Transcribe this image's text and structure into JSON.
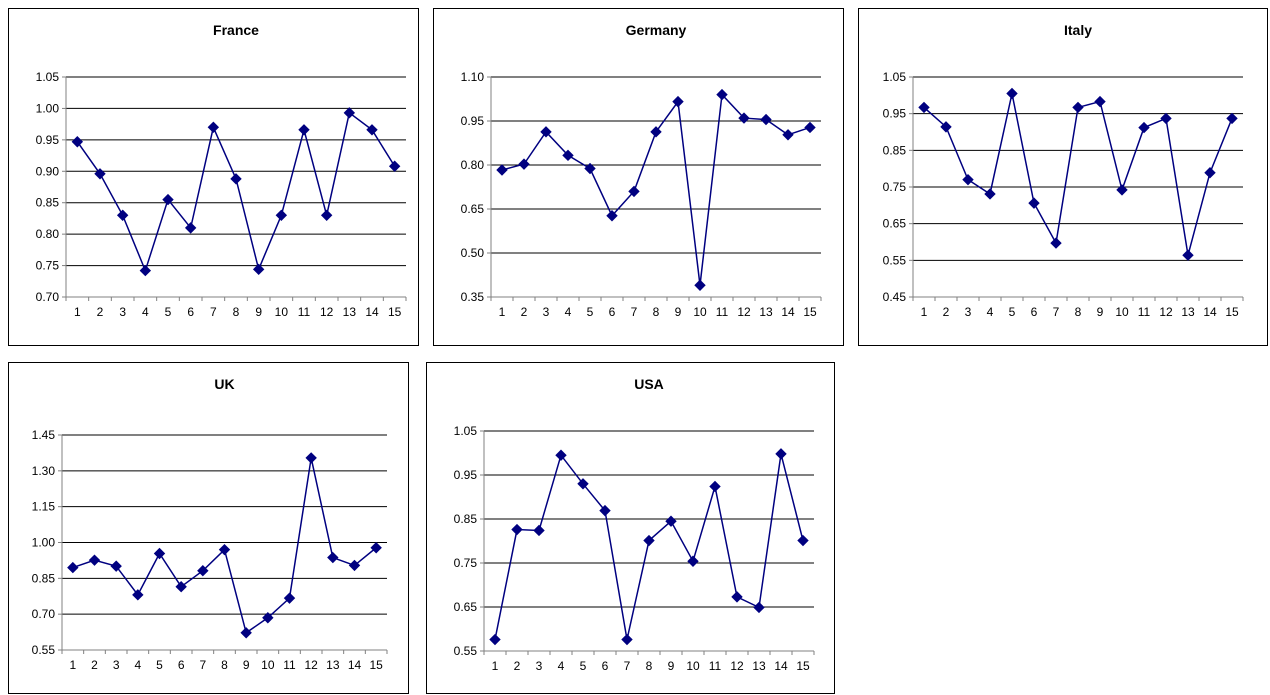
{
  "colors": {
    "series": "#000080",
    "grid": "#000000",
    "axis": "#808080"
  },
  "chart_data": [
    {
      "type": "line",
      "title": "France",
      "x": [
        1,
        2,
        3,
        4,
        5,
        6,
        7,
        8,
        9,
        10,
        11,
        12,
        13,
        14,
        15
      ],
      "values": [
        0.947,
        0.896,
        0.83,
        0.742,
        0.855,
        0.81,
        0.97,
        0.888,
        0.744,
        0.83,
        0.966,
        0.83,
        0.993,
        0.966,
        0.908
      ],
      "ylim": [
        0.7,
        1.05
      ],
      "yticks": [
        "0.70",
        "0.75",
        "0.80",
        "0.85",
        "0.90",
        "0.95",
        "1.00",
        "1.05"
      ],
      "grid": true,
      "marker": "diamond"
    },
    {
      "type": "line",
      "title": "Germany",
      "x": [
        1,
        2,
        3,
        4,
        5,
        6,
        7,
        8,
        9,
        10,
        11,
        12,
        13,
        14,
        15
      ],
      "values": [
        0.783,
        0.803,
        0.913,
        0.833,
        0.788,
        0.627,
        0.71,
        0.913,
        1.016,
        0.39,
        1.04,
        0.96,
        0.955,
        0.903,
        0.928
      ],
      "ylim": [
        0.35,
        1.1
      ],
      "yticks": [
        "0.35",
        "0.50",
        "0.65",
        "0.80",
        "0.95",
        "1.10"
      ],
      "grid": true,
      "marker": "diamond"
    },
    {
      "type": "line",
      "title": "Italy",
      "x": [
        1,
        2,
        3,
        4,
        5,
        6,
        7,
        8,
        9,
        10,
        11,
        12,
        13,
        14,
        15
      ],
      "values": [
        0.967,
        0.914,
        0.77,
        0.731,
        1.005,
        0.706,
        0.597,
        0.967,
        0.983,
        0.742,
        0.912,
        0.937,
        0.564,
        0.789,
        0.937
      ],
      "ylim": [
        0.45,
        1.05
      ],
      "yticks": [
        "0.45",
        "0.55",
        "0.65",
        "0.75",
        "0.85",
        "0.95",
        "1.05"
      ],
      "grid": true,
      "marker": "diamond"
    },
    {
      "type": "line",
      "title": "UK",
      "x": [
        1,
        2,
        3,
        4,
        5,
        6,
        7,
        8,
        9,
        10,
        11,
        12,
        13,
        14,
        15
      ],
      "values": [
        0.895,
        0.926,
        0.901,
        0.781,
        0.954,
        0.815,
        0.882,
        0.97,
        0.622,
        0.685,
        0.767,
        1.354,
        0.937,
        0.904,
        0.978
      ],
      "ylim": [
        0.55,
        1.45
      ],
      "yticks": [
        "0.55",
        "0.70",
        "0.85",
        "1.00",
        "1.15",
        "1.30",
        "1.45"
      ],
      "grid": true,
      "marker": "diamond"
    },
    {
      "type": "line",
      "title": "USA",
      "x": [
        1,
        2,
        3,
        4,
        5,
        6,
        7,
        8,
        9,
        10,
        11,
        12,
        13,
        14,
        15
      ],
      "values": [
        0.576,
        0.826,
        0.824,
        0.995,
        0.93,
        0.869,
        0.576,
        0.801,
        0.845,
        0.754,
        0.924,
        0.673,
        0.649,
        0.998,
        0.801
      ],
      "ylim": [
        0.55,
        1.05
      ],
      "yticks": [
        "0.55",
        "0.65",
        "0.75",
        "0.85",
        "0.95",
        "1.05"
      ],
      "grid": true,
      "marker": "diamond"
    }
  ]
}
